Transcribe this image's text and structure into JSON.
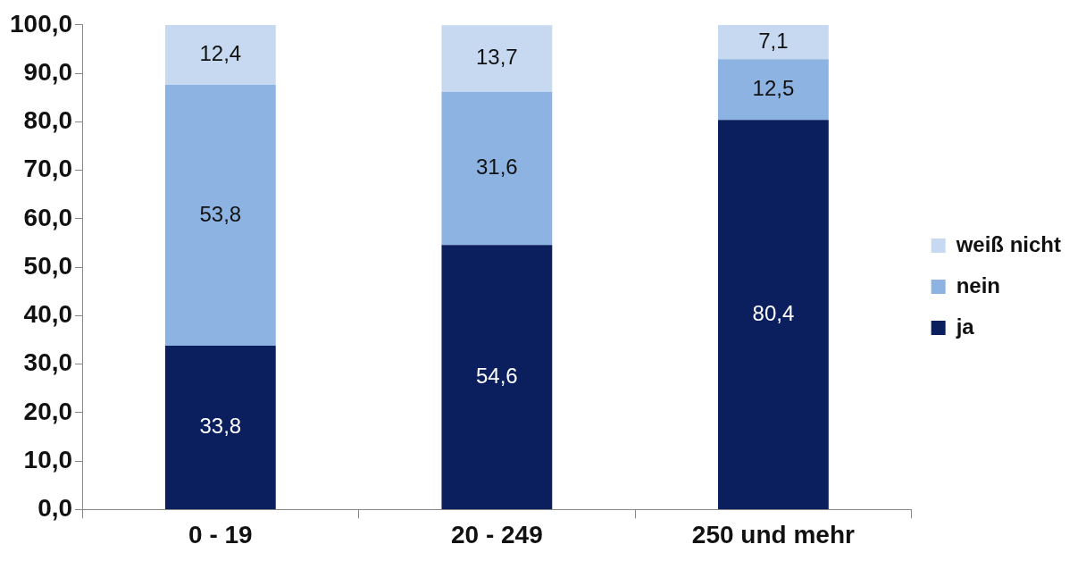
{
  "chart_data": {
    "type": "bar",
    "stacked": true,
    "categories": [
      "0 - 19",
      "20 - 249",
      "250 und mehr"
    ],
    "series": [
      {
        "name": "ja",
        "color": "#0b1f5e",
        "values": [
          33.8,
          54.6,
          80.4
        ],
        "value_labels": [
          "33,8",
          "54,6",
          "80,4"
        ]
      },
      {
        "name": "nein",
        "color": "#8db3e2",
        "values": [
          53.8,
          31.6,
          12.5
        ],
        "value_labels": [
          "53,8",
          "31,6",
          "12,5"
        ]
      },
      {
        "name": "weiß nicht",
        "color": "#c6d9f1",
        "values": [
          12.4,
          13.7,
          7.1
        ],
        "value_labels": [
          "12,4",
          "13,7",
          "7,1"
        ]
      }
    ],
    "ylim": [
      0,
      100
    ],
    "yticks": [
      {
        "value": 0,
        "label": "0,0"
      },
      {
        "value": 10,
        "label": "10,0"
      },
      {
        "value": 20,
        "label": "20,0"
      },
      {
        "value": 30,
        "label": "30,0"
      },
      {
        "value": 40,
        "label": "40,0"
      },
      {
        "value": 50,
        "label": "50,0"
      },
      {
        "value": 60,
        "label": "60,0"
      },
      {
        "value": 70,
        "label": "70,0"
      },
      {
        "value": 80,
        "label": "80,0"
      },
      {
        "value": 90,
        "label": "90,0"
      },
      {
        "value": 100,
        "label": "100,0"
      }
    ],
    "grid": false,
    "legend": "right"
  }
}
